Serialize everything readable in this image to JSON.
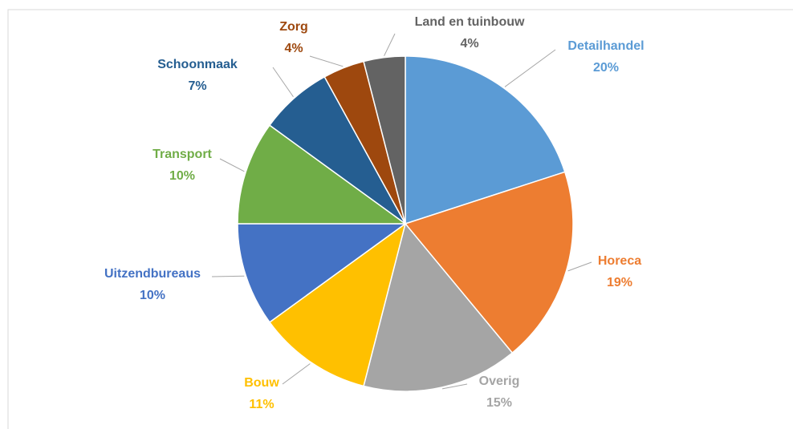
{
  "chart_data": {
    "type": "pie",
    "categories": [
      "Detailhandel",
      "Horeca",
      "Overig",
      "Bouw",
      "Uitzendbureaus",
      "Transport",
      "Schoonmaak",
      "Zorg",
      "Land en tuinbouw"
    ],
    "values": [
      20,
      19,
      15,
      11,
      10,
      10,
      7,
      4,
      4
    ],
    "value_labels": [
      "20%",
      "19%",
      "15%",
      "11%",
      "10%",
      "10%",
      "7%",
      "4%",
      "4%"
    ],
    "colors": [
      "#5b9bd5",
      "#ed7d31",
      "#a5a5a5",
      "#ffc000",
      "#4472c4",
      "#70ad47",
      "#255e91",
      "#9e480e",
      "#636363"
    ]
  }
}
